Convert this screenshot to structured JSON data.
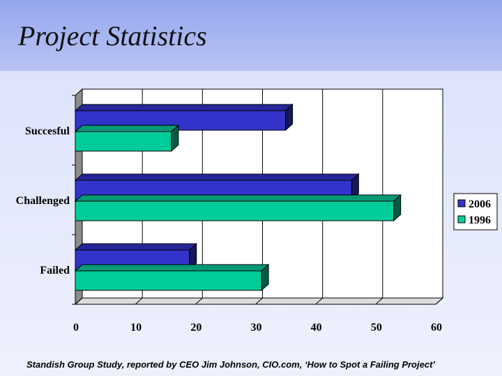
{
  "slide": {
    "title": "Project Statistics",
    "footnote": "Standish Group Study, reported by CEO Jim Johnson, CIO.com, ‘How to Spot a Failing Project’"
  },
  "colors": {
    "series_2006": "#3333cc",
    "series_1996": "#00cc99",
    "background_band": "#a3b3f0"
  },
  "chart_data": {
    "type": "bar",
    "orientation": "horizontal",
    "categories": [
      "Succesful",
      "Challenged",
      "Failed"
    ],
    "series": [
      {
        "name": "2006",
        "values": [
          35,
          46,
          19
        ]
      },
      {
        "name": "1996",
        "values": [
          16,
          53,
          31
        ]
      }
    ],
    "xlim": [
      0,
      60
    ],
    "xticks": [
      "0",
      "10",
      "20",
      "30",
      "40",
      "50",
      "60"
    ],
    "grid": true,
    "legend": "right",
    "style": "3d"
  }
}
